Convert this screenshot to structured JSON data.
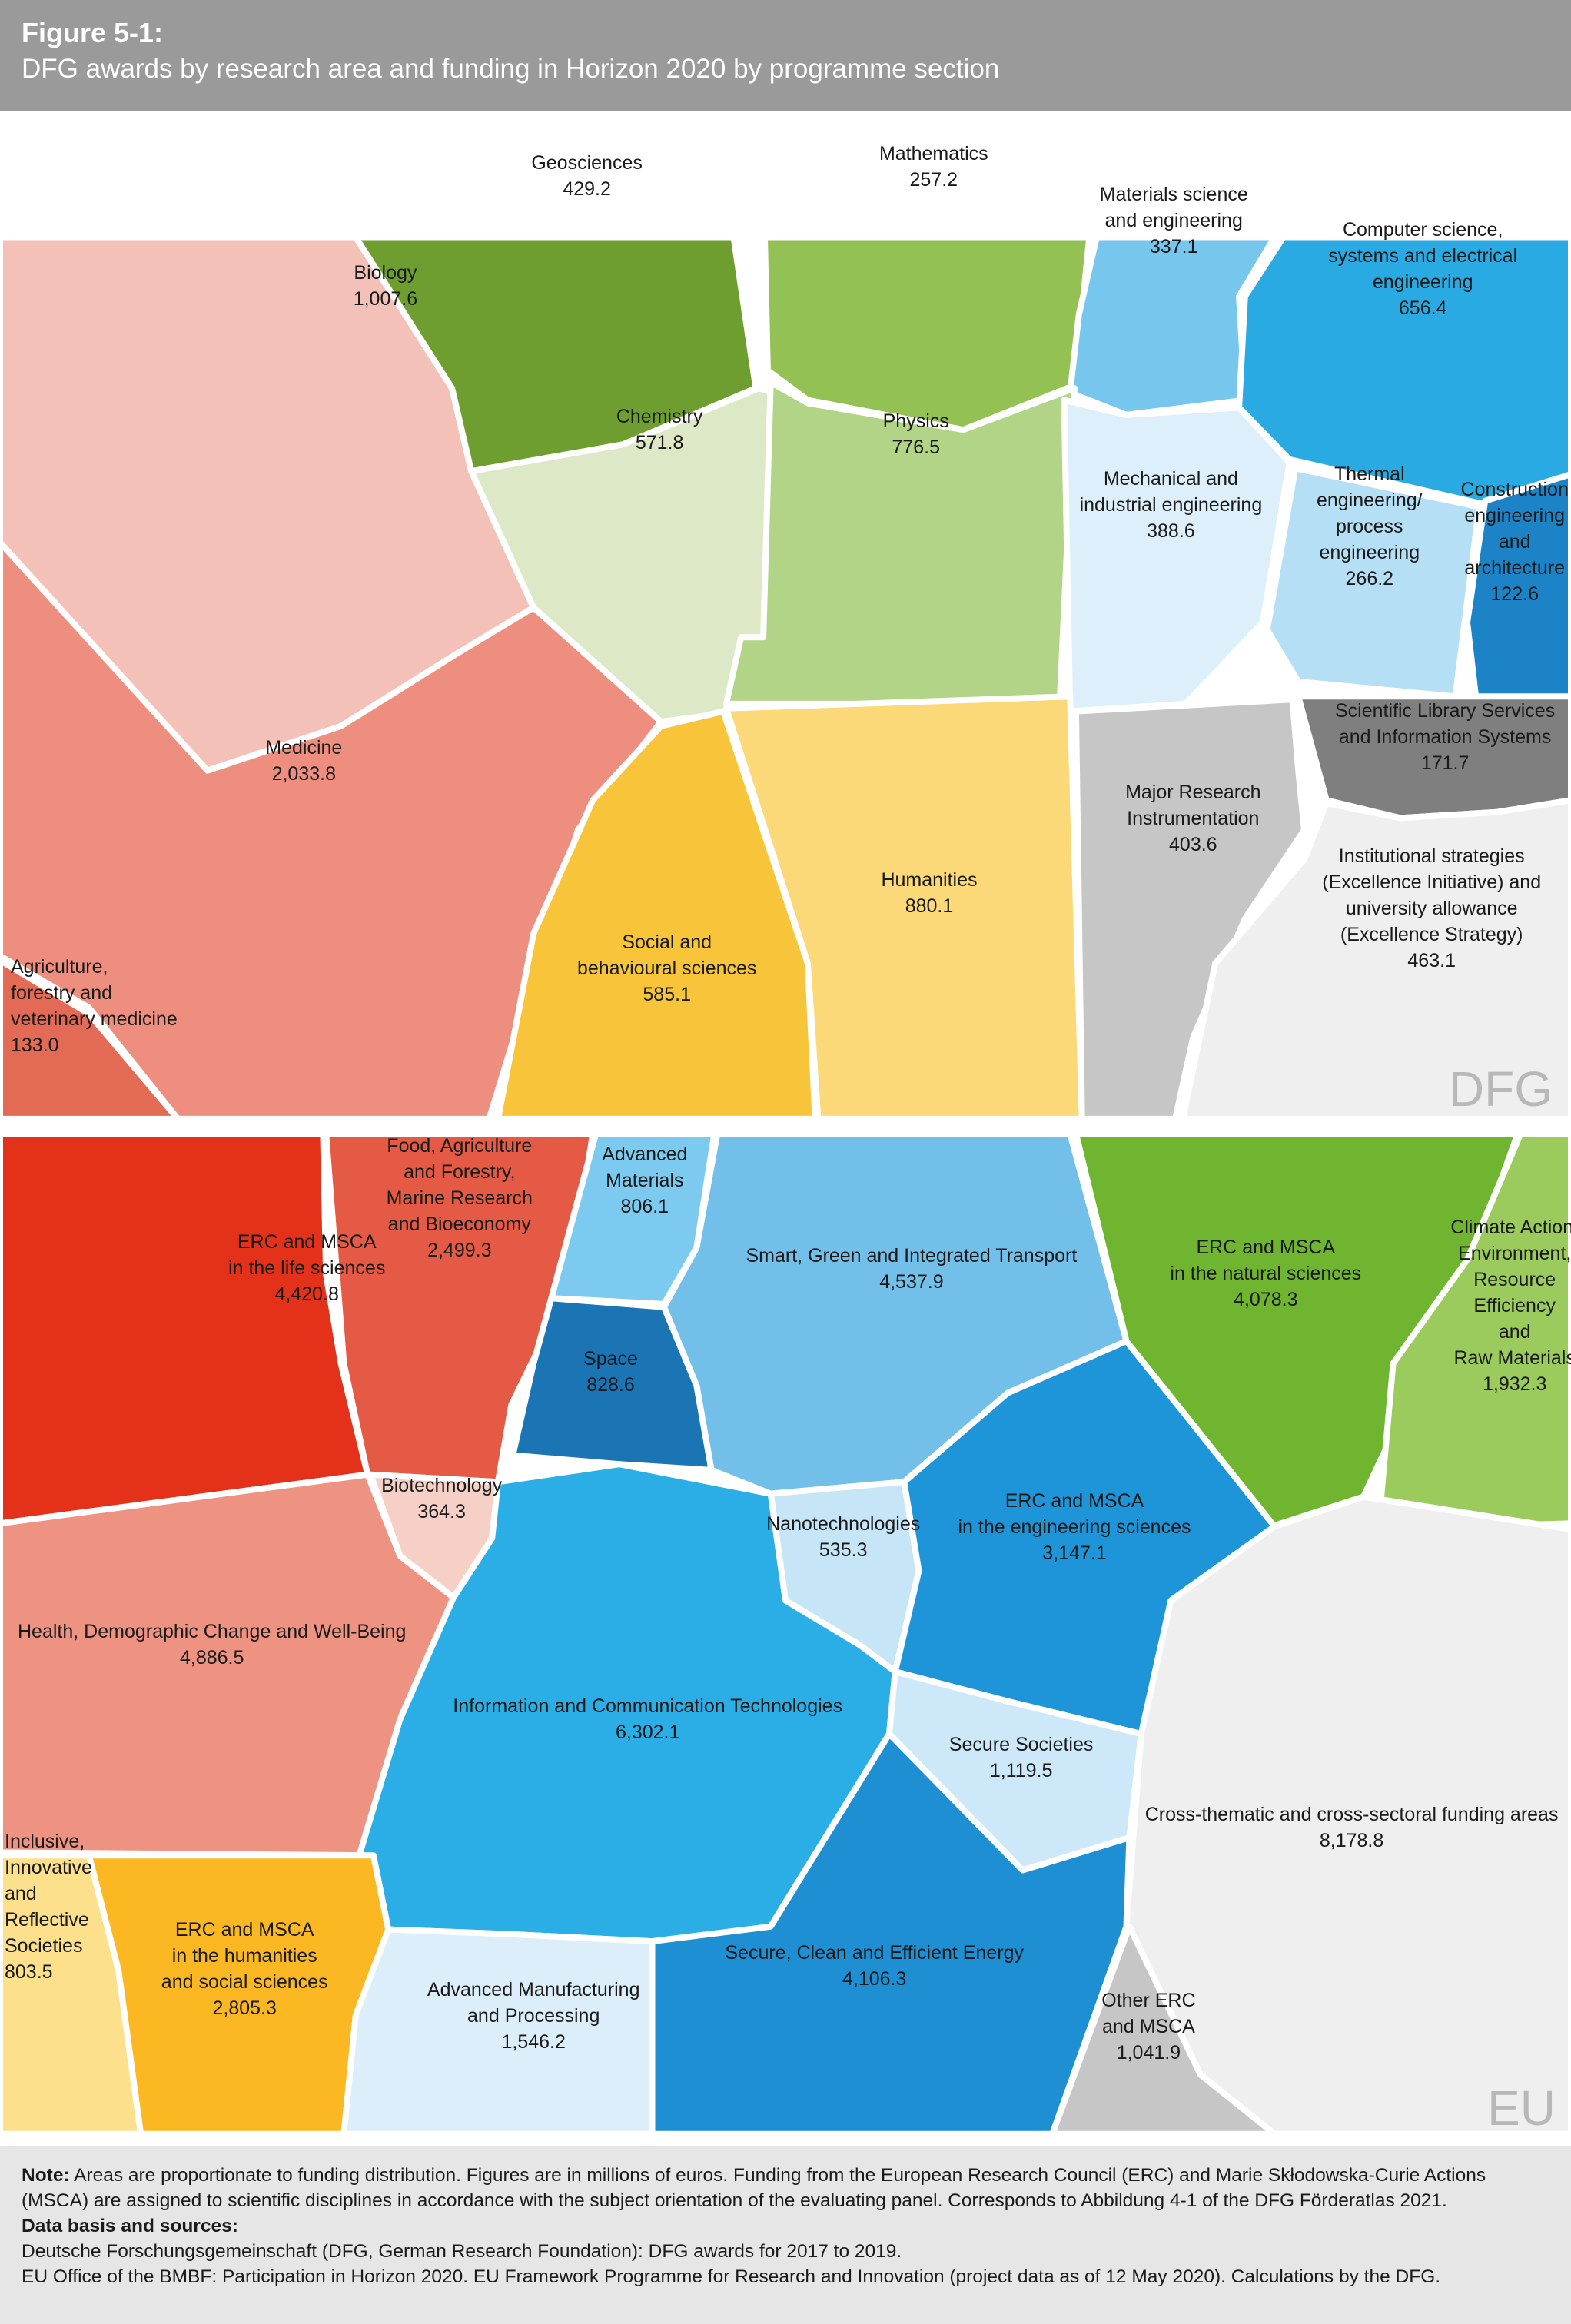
{
  "header": {
    "figure_number": "Figure 5-1:",
    "title": "DFG awards by research area and funding in Horizon 2020 by programme section"
  },
  "chart_data": [
    {
      "type": "voronoi-treemap",
      "name": "DFG",
      "title": "DFG awards by research area",
      "unit": "millions of euros",
      "cells": [
        {
          "label": [
            "Biology",
            "1,007.6"
          ],
          "value": 1007.6,
          "color": "#f4c1b8"
        },
        {
          "label": [
            "Geosciences",
            "429.2"
          ],
          "value": 429.2,
          "color": "#6d9e2f"
        },
        {
          "label": [
            "Mathematics",
            "257.2"
          ],
          "value": 257.2,
          "color": "#94c153"
        },
        {
          "label": [
            "Materials science",
            "and engineering",
            "337.1"
          ],
          "value": 337.1,
          "color": "#76c6ee"
        },
        {
          "label": [
            "Computer science,",
            "systems and electrical",
            "engineering",
            "656.4"
          ],
          "value": 656.4,
          "color": "#2aaae2"
        },
        {
          "label": [
            "Chemistry",
            "571.8"
          ],
          "value": 571.8,
          "color": "#dde9c6"
        },
        {
          "label": [
            "Physics",
            "776.5"
          ],
          "value": 776.5,
          "color": "#b1d486"
        },
        {
          "label": [
            "Mechanical and",
            "industrial engineering",
            "388.6"
          ],
          "value": 388.6,
          "color": "#ddeffa"
        },
        {
          "label": [
            "Thermal",
            "engineering/",
            "process",
            "engineering",
            "266.2"
          ],
          "value": 266.2,
          "color": "#b4dff5"
        },
        {
          "label": [
            "Construction",
            "engineering",
            "and",
            "architecture",
            "122.6"
          ],
          "value": 122.6,
          "color": "#1c83c7"
        },
        {
          "label": [
            "Medicine",
            "2,033.8"
          ],
          "value": 2033.8,
          "color": "#ee8e7f"
        },
        {
          "label": [
            "Social and",
            "behavioural sciences",
            "585.1"
          ],
          "value": 585.1,
          "color": "#f8c53a"
        },
        {
          "label": [
            "Humanities",
            "880.1"
          ],
          "value": 880.1,
          "color": "#fcd978"
        },
        {
          "label": [
            "Major Research",
            "Instrumentation",
            "403.6"
          ],
          "value": 403.6,
          "color": "#c6c6c6"
        },
        {
          "label": [
            "Scientific Library Services",
            "and Information Systems",
            "171.7"
          ],
          "value": 171.7,
          "color": "#7f7f7f"
        },
        {
          "label": [
            "Institutional strategies",
            "(Excellence Initiative) and",
            "university allowance",
            "(Excellence Strategy)",
            "463.1"
          ],
          "value": 463.1,
          "color": "#efefef"
        },
        {
          "label": [
            "Agriculture,",
            "forestry and",
            "veterinary medicine",
            "133.0"
          ],
          "value": 133.0,
          "color": "#e36a55"
        }
      ]
    },
    {
      "type": "voronoi-treemap",
      "name": "EU",
      "title": "Funding in Horizon 2020 by programme section",
      "unit": "millions of euros",
      "cells": [
        {
          "label": [
            "ERC and MSCA",
            "in the life sciences",
            "4,420.8"
          ],
          "value": 4420.8,
          "color": "#e33219"
        },
        {
          "label": [
            "Food, Agriculture",
            "and Forestry,",
            "Marine Research",
            "and Bioeconomy",
            "2,499.3"
          ],
          "value": 2499.3,
          "color": "#e45a45"
        },
        {
          "label": [
            "Advanced",
            "Materials",
            "806.1"
          ],
          "value": 806.1,
          "color": "#7dcaf0"
        },
        {
          "label": [
            "Smart, Green and Integrated Transport",
            "4,537.9"
          ],
          "value": 4537.9,
          "color": "#72bfe9"
        },
        {
          "label": [
            "ERC and MSCA",
            "in the natural sciences",
            "4,078.3"
          ],
          "value": 4078.3,
          "color": "#6fb530"
        },
        {
          "label": [
            "Climate Action,",
            "Environment,",
            "Resource",
            "Efficiency",
            "and",
            "Raw Materials",
            "1,932.3"
          ],
          "value": 1932.3,
          "color": "#9ccb5d"
        },
        {
          "label": [
            "Space",
            "828.6"
          ],
          "value": 828.6,
          "color": "#1b74b4"
        },
        {
          "label": [
            "Biotechnology",
            "364.3"
          ],
          "value": 364.3,
          "color": "#f6cfc6"
        },
        {
          "label": [
            "Nanotechnologies",
            "535.3"
          ],
          "value": 535.3,
          "color": "#c6e5f7"
        },
        {
          "label": [
            "ERC and MSCA",
            "in the engineering sciences",
            "3,147.1"
          ],
          "value": 3147.1,
          "color": "#1f95d9"
        },
        {
          "label": [
            "Health, Demographic Change and Well-Being",
            "4,886.5"
          ],
          "value": 4886.5,
          "color": "#ee9282"
        },
        {
          "label": [
            "Information and Communication Technologies",
            "6,302.1"
          ],
          "value": 6302.1,
          "color": "#2aaee5"
        },
        {
          "label": [
            "Secure Societies",
            "1,119.5"
          ],
          "value": 1119.5,
          "color": "#cde8f8"
        },
        {
          "label": [
            "Cross-thematic and cross-sectoral funding areas",
            "8,178.8"
          ],
          "value": 8178.8,
          "color": "#efefef"
        },
        {
          "label": [
            "Inclusive,",
            "Innovative",
            "and",
            "Reflective",
            "Societies",
            "803.5"
          ],
          "value": 803.5,
          "color": "#fde08c"
        },
        {
          "label": [
            "ERC and MSCA",
            "in the humanities",
            "and social sciences",
            "2,805.3"
          ],
          "value": 2805.3,
          "color": "#fbb822"
        },
        {
          "label": [
            "Advanced Manufacturing",
            "and Processing",
            "1,546.2"
          ],
          "value": 1546.2,
          "color": "#dceef9"
        },
        {
          "label": [
            "Secure, Clean and Efficient Energy",
            "4,106.3"
          ],
          "value": 4106.3,
          "color": "#1e8fd3"
        },
        {
          "label": [
            "Other ERC",
            "and MSCA",
            "1,041.9"
          ],
          "value": 1041.9,
          "color": "#c6c6c6"
        }
      ]
    }
  ],
  "panels": {
    "dfg_tag": "DFG",
    "eu_tag": "EU"
  },
  "footer": {
    "note_label": "Note:",
    "note_text": " Areas are proportionate to funding distribution.  Figures are in millions of euros. Funding from the European Research Council (ERC) and Marie Skłodowska-Curie Actions (MSCA) are assigned to scientific disciplines in accordance with the subject orientation of the evaluating panel. Corresponds to Abbildung 4-1 of the DFG Förderatlas 2021.",
    "sources_label": "Data basis and sources:",
    "source_1": "Deutsche Forschungsgemeinschaft (DFG, German Research Foundation): DFG awards for 2017 to 2019.",
    "source_2": "EU Office of the BMBF: Participation in Horizon 2020. EU Framework Programme for Research and Innovation (project data as of 12 May 2020). Calculations by the DFG."
  }
}
